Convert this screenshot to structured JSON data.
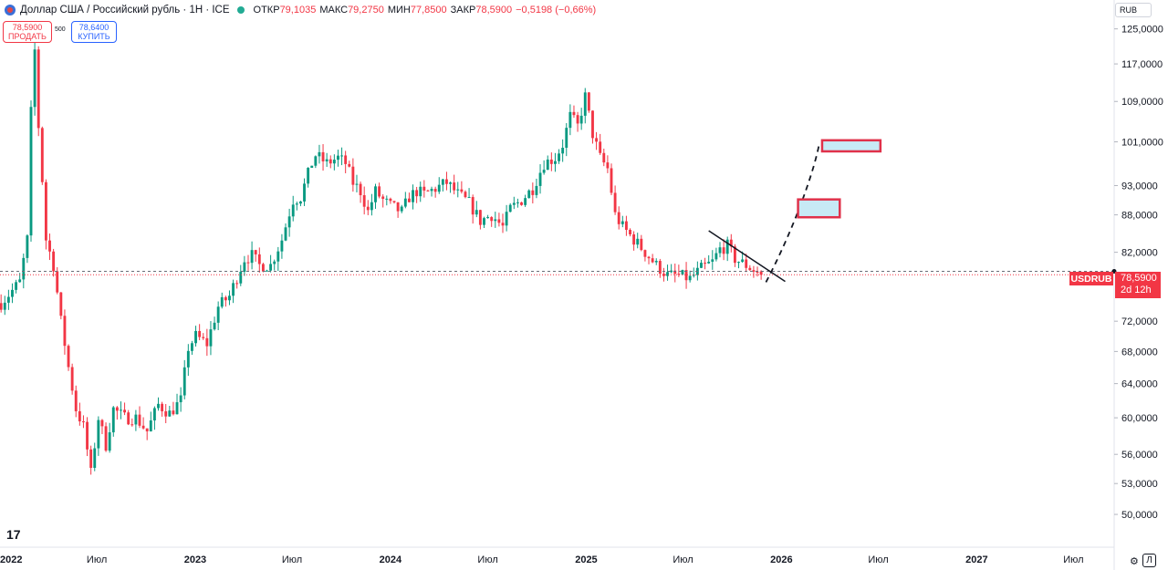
{
  "header": {
    "symbol_title": "Доллар США / Российский рубль · 1Н · ICE",
    "open_label": "ОТКР",
    "open_value": "79,1035",
    "high_label": "МАКС",
    "high_value": "79,2750",
    "low_label": "МИН",
    "low_value": "77,8500",
    "close_label": "ЗАКР",
    "close_value": "78,5900",
    "change_value": "−0,5198 (−0,66%)"
  },
  "trade_panel": {
    "sell_price": "78,5900",
    "sell_label": "ПРОДАТЬ",
    "spread": "500",
    "buy_price": "78,6400",
    "buy_label": "КУПИТЬ"
  },
  "currency_button": "RUB",
  "last_price": {
    "symbol": "USDRUB",
    "price": "78,5900",
    "countdown": "2d 12h"
  },
  "corner": {
    "auto_label": "⚙",
    "log_label": "Л"
  },
  "logo": "17",
  "colors": {
    "up": "#089981",
    "down": "#f23645",
    "line": "#131722",
    "zone_fill": "#c7eaf5",
    "zone_border": "#e0314a"
  },
  "chart_data": {
    "type": "candlestick",
    "title": "Доллар США / Российский рубль · 1Н · ICE",
    "timeframe": "1W",
    "y_scale": "log",
    "ylim": [
      47,
      132
    ],
    "xlim": [
      "2022-01-01",
      "2027-09-15"
    ],
    "y_ticks": [
      "125,0000",
      "117,0000",
      "109,0000",
      "101,0000",
      "93,0000",
      "88,0000",
      "82,0000",
      "72,0000",
      "68,0000",
      "64,0000",
      "60,0000",
      "56,0000",
      "53,0000",
      "50,0000"
    ],
    "x_ticks": [
      {
        "date": "2022-01-01",
        "label": "2022",
        "bold": true
      },
      {
        "date": "2022-07-01",
        "label": "Июл",
        "bold": false
      },
      {
        "date": "2023-01-01",
        "label": "2023",
        "bold": true
      },
      {
        "date": "2023-07-01",
        "label": "Июл",
        "bold": false
      },
      {
        "date": "2024-01-01",
        "label": "2024",
        "bold": true
      },
      {
        "date": "2024-07-01",
        "label": "Июл",
        "bold": false
      },
      {
        "date": "2025-01-01",
        "label": "2025",
        "bold": true
      },
      {
        "date": "2025-07-01",
        "label": "Июл",
        "bold": false
      },
      {
        "date": "2026-01-01",
        "label": "2026",
        "bold": true
      },
      {
        "date": "2026-07-01",
        "label": "Июл",
        "bold": false
      },
      {
        "date": "2027-01-01",
        "label": "2027",
        "bold": true
      },
      {
        "date": "2027-07-01",
        "label": "Июл",
        "bold": false
      }
    ],
    "series_start": "2022-01-03",
    "close_anchors": [
      [
        "2022-01-03",
        74.5
      ],
      [
        "2022-02-07",
        77.5
      ],
      [
        "2022-02-21",
        84
      ],
      [
        "2022-03-01",
        110
      ],
      [
        "2022-03-07",
        120
      ],
      [
        "2022-03-14",
        104
      ],
      [
        "2022-03-28",
        84
      ],
      [
        "2022-04-11",
        80
      ],
      [
        "2022-04-25",
        72
      ],
      [
        "2022-05-09",
        66
      ],
      [
        "2022-05-23",
        61
      ],
      [
        "2022-06-06",
        59
      ],
      [
        "2022-06-20",
        54
      ],
      [
        "2022-07-04",
        60
      ],
      [
        "2022-07-18",
        57
      ],
      [
        "2022-08-01",
        61
      ],
      [
        "2022-08-22",
        60
      ],
      [
        "2022-09-12",
        60
      ],
      [
        "2022-10-03",
        58.5
      ],
      [
        "2022-10-24",
        61.5
      ],
      [
        "2022-11-14",
        60.5
      ],
      [
        "2022-12-05",
        62
      ],
      [
        "2022-12-19",
        68.5
      ],
      [
        "2023-01-02",
        70
      ],
      [
        "2023-01-23",
        69
      ],
      [
        "2023-02-13",
        74
      ],
      [
        "2023-03-06",
        75.5
      ],
      [
        "2023-04-03",
        81
      ],
      [
        "2023-04-17",
        81.5
      ],
      [
        "2023-05-01",
        80
      ],
      [
        "2023-05-22",
        80
      ],
      [
        "2023-06-12",
        84
      ],
      [
        "2023-07-03",
        90.5
      ],
      [
        "2023-07-17",
        91
      ],
      [
        "2023-08-07",
        97
      ],
      [
        "2023-08-14",
        98.5
      ],
      [
        "2023-09-04",
        97
      ],
      [
        "2023-09-25",
        98
      ],
      [
        "2023-10-09",
        97
      ],
      [
        "2023-10-23",
        93.5
      ],
      [
        "2023-11-06",
        92
      ],
      [
        "2023-11-20",
        88.5
      ],
      [
        "2023-12-04",
        92
      ],
      [
        "2023-12-18",
        90.5
      ],
      [
        "2024-01-01",
        89.5
      ],
      [
        "2024-01-22",
        88.5
      ],
      [
        "2024-02-05",
        91
      ],
      [
        "2024-02-19",
        92
      ],
      [
        "2024-03-04",
        91.5
      ],
      [
        "2024-03-25",
        92.5
      ],
      [
        "2024-04-15",
        93.5
      ],
      [
        "2024-05-06",
        91.5
      ],
      [
        "2024-05-27",
        90
      ],
      [
        "2024-06-17",
        87
      ],
      [
        "2024-07-08",
        88
      ],
      [
        "2024-07-29",
        86
      ],
      [
        "2024-08-12",
        89
      ],
      [
        "2024-09-02",
        90.5
      ],
      [
        "2024-09-23",
        92.5
      ],
      [
        "2024-10-14",
        97
      ],
      [
        "2024-11-04",
        98
      ],
      [
        "2024-11-18",
        100.5
      ],
      [
        "2024-12-02",
        106
      ],
      [
        "2024-12-16",
        104
      ],
      [
        "2024-12-30",
        110
      ],
      [
        "2025-01-13",
        102.5
      ],
      [
        "2025-01-27",
        98
      ],
      [
        "2025-02-10",
        96
      ],
      [
        "2025-02-24",
        88
      ],
      [
        "2025-03-10",
        86
      ],
      [
        "2025-03-31",
        84
      ],
      [
        "2025-04-21",
        82
      ],
      [
        "2025-05-12",
        80
      ],
      [
        "2025-06-02",
        78.5
      ],
      [
        "2025-06-23",
        78.5
      ],
      [
        "2025-07-14",
        78
      ],
      [
        "2025-08-04",
        79.5
      ],
      [
        "2025-08-25",
        80.5
      ],
      [
        "2025-09-08",
        82.5
      ],
      [
        "2025-09-22",
        83
      ],
      [
        "2025-10-06",
        81
      ],
      [
        "2025-10-27",
        80
      ],
      [
        "2025-11-10",
        79.3
      ],
      [
        "2025-11-24",
        78.59
      ]
    ],
    "last": {
      "open": 79.1035,
      "high": 79.275,
      "low": 77.85,
      "close": 78.59,
      "change": -0.5198,
      "change_pct": -0.66
    },
    "current_price_line": 78.59,
    "prev_close_line": 79.11,
    "drawings": {
      "trendline": [
        [
          "2025-08-18",
          85.4
        ],
        [
          "2026-01-08",
          77.6
        ]
      ],
      "projection_path": [
        [
          "2025-12-03",
          77.5
        ],
        [
          "2026-01-20",
          85
        ],
        [
          "2026-02-28",
          94.5
        ],
        [
          "2026-03-12",
          100.3
        ]
      ],
      "target_zones": [
        {
          "x0": "2026-02-01",
          "x1": "2026-04-20",
          "y_low": 87.6,
          "y_high": 90.6
        },
        {
          "x0": "2026-03-18",
          "x1": "2026-07-05",
          "y_low": 99.2,
          "y_high": 101.3
        }
      ]
    }
  }
}
